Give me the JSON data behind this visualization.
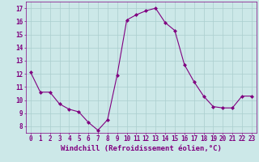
{
  "x": [
    0,
    1,
    2,
    3,
    4,
    5,
    6,
    7,
    8,
    9,
    10,
    11,
    12,
    13,
    14,
    15,
    16,
    17,
    18,
    19,
    20,
    21,
    22,
    23
  ],
  "y": [
    12.1,
    10.6,
    10.6,
    9.7,
    9.3,
    9.1,
    8.3,
    7.7,
    8.5,
    11.9,
    16.1,
    16.5,
    16.8,
    17.0,
    15.9,
    15.3,
    12.7,
    11.4,
    10.3,
    9.5,
    9.4,
    9.4,
    10.3,
    10.3
  ],
  "line_color": "#800080",
  "marker": "D",
  "markersize": 2.0,
  "linewidth": 0.8,
  "bg_color": "#cce8e8",
  "grid_color": "#aacece",
  "xlabel": "Windchill (Refroidissement éolien,°C)",
  "xlabel_fontsize": 6.5,
  "xlim": [
    -0.5,
    23.5
  ],
  "ylim": [
    7.5,
    17.5
  ],
  "yticks": [
    8,
    9,
    10,
    11,
    12,
    13,
    14,
    15,
    16,
    17
  ],
  "xticks": [
    0,
    1,
    2,
    3,
    4,
    5,
    6,
    7,
    8,
    9,
    10,
    11,
    12,
    13,
    14,
    15,
    16,
    17,
    18,
    19,
    20,
    21,
    22,
    23
  ],
  "tick_fontsize": 5.5,
  "tick_color": "#800080",
  "spine_color": "#800080"
}
